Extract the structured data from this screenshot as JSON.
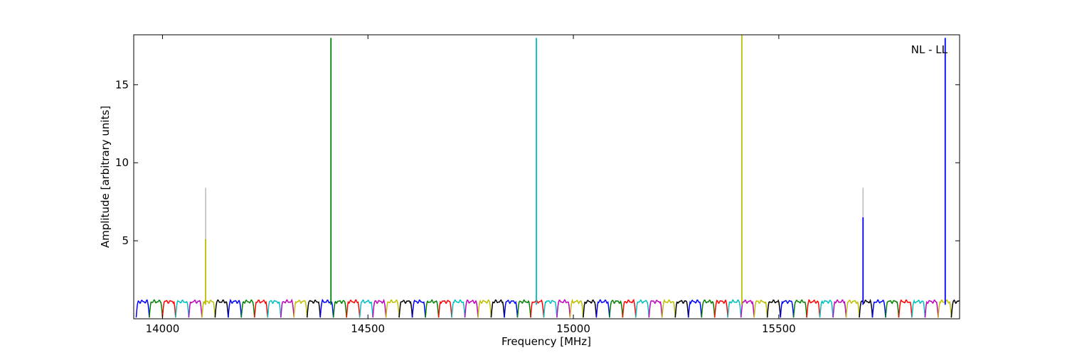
{
  "chart_data": {
    "type": "line",
    "title": "",
    "annotation": "NL - LL",
    "xlabel": "Frequency [MHz]",
    "ylabel": "Amplitude [arbitrary units]",
    "xlim": [
      13930,
      15940
    ],
    "ylim": [
      0,
      18.2
    ],
    "xticks": [
      14000,
      14500,
      15000,
      15500
    ],
    "yticks": [
      5,
      10,
      15
    ],
    "xtick_labels": [
      "14000",
      "14500",
      "15000",
      "15500"
    ],
    "ytick_labels": [
      "5",
      "10",
      "15"
    ],
    "grid": false,
    "legend": "none",
    "channel_width_mhz": 32,
    "band_start_mhz": 13936,
    "band_count": 63,
    "passband_level": 1.1,
    "band_edge_level": 0.08,
    "colors": [
      "#0000ff",
      "#008000",
      "#ff0000",
      "#00bfbf",
      "#bf00bf",
      "#bfbf00",
      "#000000"
    ],
    "spikes": [
      {
        "x": 14105,
        "y": 5.1,
        "color": "#bfbf00",
        "ghost": 8.4
      },
      {
        "x": 14410,
        "y": 18.0,
        "color": "#008000"
      },
      {
        "x": 14910,
        "y": 18.0,
        "color": "#00bfbf"
      },
      {
        "x": 15410,
        "y": 18.2,
        "color": "#bfbf00"
      },
      {
        "x": 15705,
        "y": 6.5,
        "color": "#0000ff",
        "ghost": 8.4
      },
      {
        "x": 15905,
        "y": 18.0,
        "color": "#0000ff"
      }
    ]
  }
}
